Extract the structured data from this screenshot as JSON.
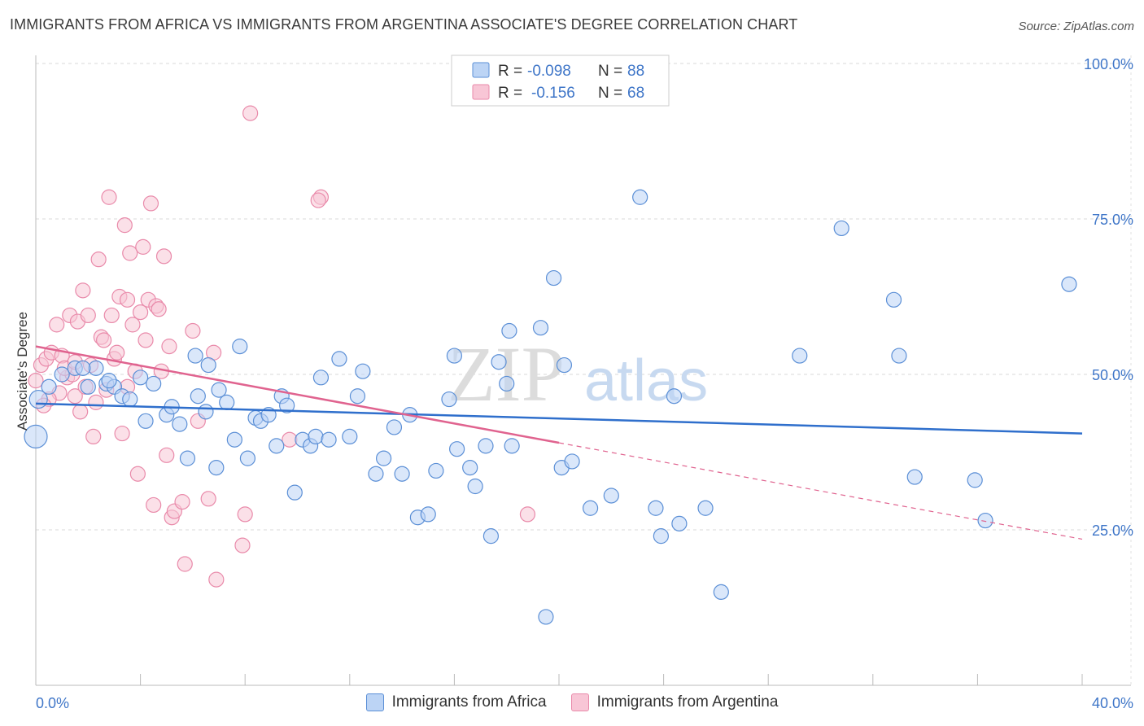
{
  "title": "IMMIGRANTS FROM AFRICA VS IMMIGRANTS FROM ARGENTINA ASSOCIATE'S DEGREE CORRELATION CHART",
  "source": "Source: ZipAtlas.com",
  "watermark": {
    "zip": "ZIP",
    "atlas": "atlas"
  },
  "legend": {
    "r_label": "R =",
    "n_label": "N =",
    "africa": {
      "r": "-0.098",
      "n": "88"
    },
    "argentina": {
      "r": "-0.156",
      "n": "68"
    }
  },
  "colors": {
    "africa_fill": "#bcd4f5",
    "africa_stroke": "#5b8fd6",
    "africa_line": "#2f6fcc",
    "argentina_fill": "#f8c6d6",
    "argentina_stroke": "#e98aaa",
    "argentina_line": "#e0638f",
    "grid": "#d9d9d9",
    "accent": "#3f76c8"
  },
  "chart_data": {
    "type": "scatter",
    "title": "IMMIGRANTS FROM AFRICA VS IMMIGRANTS FROM ARGENTINA ASSOCIATE'S DEGREE CORRELATION CHART",
    "xlabel": "",
    "ylabel": "Associate's Degree",
    "xlim": [
      0,
      40
    ],
    "ylim": [
      0,
      105
    ],
    "x_tick_labels": [
      {
        "value": 0,
        "label": "0.0%"
      },
      {
        "value": 40,
        "label": "40.0%"
      }
    ],
    "y_tick_labels": [
      {
        "value": 25,
        "label": "25.0%"
      },
      {
        "value": 50,
        "label": "50.0%"
      },
      {
        "value": 75,
        "label": "75.0%"
      },
      {
        "value": 100,
        "label": "100.0%"
      }
    ],
    "series": [
      {
        "name": "Immigrants from Africa",
        "r": -0.098,
        "n": 88,
        "trend": {
          "x": [
            0,
            40
          ],
          "y": [
            45.3,
            40.5
          ],
          "dashed_from": null
        },
        "points": [
          [
            0.0,
            40.0,
            14
          ],
          [
            0.1,
            46.0,
            11
          ],
          [
            0.5,
            48.0,
            9
          ],
          [
            1.0,
            50.0,
            9
          ],
          [
            1.5,
            51.0,
            9
          ],
          [
            2.0,
            48.0,
            9
          ],
          [
            2.3,
            51.0,
            9
          ],
          [
            2.7,
            48.5,
            9
          ],
          [
            3.0,
            48.0,
            9
          ],
          [
            3.3,
            46.5,
            9
          ],
          [
            3.6,
            46.0,
            9
          ],
          [
            4.0,
            49.5,
            9
          ],
          [
            4.2,
            42.5,
            9
          ],
          [
            4.5,
            48.5,
            9
          ],
          [
            5.0,
            43.5,
            9
          ],
          [
            5.2,
            44.8,
            9
          ],
          [
            5.5,
            42.0,
            9
          ],
          [
            5.8,
            36.5,
            9
          ],
          [
            6.1,
            53.0,
            9
          ],
          [
            6.2,
            46.5,
            9
          ],
          [
            6.6,
            51.5,
            9
          ],
          [
            6.9,
            35.0,
            9
          ],
          [
            7.0,
            47.5,
            9
          ],
          [
            7.3,
            45.5,
            9
          ],
          [
            7.6,
            39.5,
            9
          ],
          [
            7.8,
            54.5,
            9
          ],
          [
            8.1,
            36.5,
            9
          ],
          [
            8.4,
            43.0,
            9
          ],
          [
            8.6,
            42.5,
            9
          ],
          [
            8.9,
            43.5,
            9
          ],
          [
            9.2,
            38.5,
            9
          ],
          [
            9.4,
            46.5,
            9
          ],
          [
            9.6,
            45.0,
            9
          ],
          [
            9.9,
            31.0,
            9
          ],
          [
            10.2,
            39.5,
            9
          ],
          [
            10.5,
            38.5,
            9
          ],
          [
            10.7,
            40.0,
            9
          ],
          [
            10.9,
            49.5,
            9
          ],
          [
            11.2,
            39.5,
            9
          ],
          [
            11.6,
            52.5,
            9
          ],
          [
            12.0,
            40.0,
            9
          ],
          [
            12.3,
            46.5,
            9
          ],
          [
            12.5,
            50.5,
            9
          ],
          [
            13.0,
            34.0,
            9
          ],
          [
            13.3,
            36.5,
            9
          ],
          [
            13.7,
            41.5,
            9
          ],
          [
            14.0,
            34.0,
            9
          ],
          [
            14.3,
            43.5,
            9
          ],
          [
            14.6,
            27.0,
            9
          ],
          [
            15.0,
            27.5,
            9
          ],
          [
            15.3,
            34.5,
            9
          ],
          [
            15.8,
            46.0,
            9
          ],
          [
            16.0,
            53.0,
            9
          ],
          [
            16.1,
            38.0,
            9
          ],
          [
            16.6,
            35.0,
            9
          ],
          [
            16.8,
            32.0,
            9
          ],
          [
            17.2,
            38.5,
            9
          ],
          [
            17.4,
            24.0,
            9
          ],
          [
            17.7,
            52.0,
            9
          ],
          [
            18.0,
            48.5,
            9
          ],
          [
            18.1,
            57.0,
            9
          ],
          [
            18.2,
            38.5,
            9
          ],
          [
            19.3,
            57.5,
            9
          ],
          [
            19.5,
            11.0,
            9
          ],
          [
            19.8,
            65.5,
            9
          ],
          [
            20.1,
            35.0,
            9
          ],
          [
            20.2,
            51.5,
            9
          ],
          [
            20.5,
            36.0,
            9
          ],
          [
            21.2,
            28.5,
            9
          ],
          [
            22.0,
            30.5,
            9
          ],
          [
            23.7,
            28.5,
            9
          ],
          [
            23.1,
            78.5,
            9
          ],
          [
            23.9,
            24.0,
            9
          ],
          [
            24.6,
            26.0,
            9
          ],
          [
            24.4,
            46.5,
            9
          ],
          [
            25.6,
            28.5,
            9
          ],
          [
            26.2,
            15.0,
            9
          ],
          [
            29.2,
            53.0,
            9
          ],
          [
            30.8,
            73.5,
            9
          ],
          [
            32.8,
            62.0,
            9
          ],
          [
            33.0,
            53.0,
            9
          ],
          [
            33.6,
            33.5,
            9
          ],
          [
            35.9,
            33.0,
            9
          ],
          [
            36.3,
            26.5,
            9
          ],
          [
            39.5,
            64.5,
            9
          ],
          [
            1.8,
            51.0,
            9
          ],
          [
            2.8,
            49.0,
            9
          ],
          [
            6.5,
            44.0,
            9
          ]
        ]
      },
      {
        "name": "Immigrants from Argentina",
        "r": -0.156,
        "n": 68,
        "trend": {
          "x": [
            0,
            40
          ],
          "y": [
            54.5,
            23.5
          ],
          "dashed_from": 20
        },
        "points": [
          [
            0.0,
            49.0,
            9
          ],
          [
            0.2,
            51.5,
            9
          ],
          [
            0.4,
            52.5,
            9
          ],
          [
            0.6,
            53.5,
            9
          ],
          [
            0.8,
            58.0,
            9
          ],
          [
            0.9,
            47.0,
            9
          ],
          [
            1.0,
            53.0,
            9
          ],
          [
            1.2,
            49.5,
            9
          ],
          [
            1.3,
            59.5,
            9
          ],
          [
            1.4,
            50.0,
            9
          ],
          [
            1.5,
            46.5,
            9
          ],
          [
            1.6,
            58.5,
            9
          ],
          [
            1.7,
            44.0,
            9
          ],
          [
            1.8,
            63.5,
            9
          ],
          [
            1.9,
            48.0,
            9
          ],
          [
            2.0,
            59.5,
            9
          ],
          [
            2.1,
            51.5,
            9
          ],
          [
            2.2,
            40.0,
            9
          ],
          [
            2.3,
            45.5,
            9
          ],
          [
            2.4,
            68.5,
            9
          ],
          [
            2.5,
            56.0,
            9
          ],
          [
            2.6,
            55.5,
            9
          ],
          [
            2.8,
            78.5,
            9
          ],
          [
            2.9,
            59.5,
            9
          ],
          [
            3.0,
            52.5,
            9
          ],
          [
            3.1,
            53.5,
            9
          ],
          [
            3.2,
            62.5,
            9
          ],
          [
            3.3,
            40.5,
            9
          ],
          [
            3.4,
            74.0,
            9
          ],
          [
            3.5,
            62.0,
            9
          ],
          [
            3.6,
            69.5,
            9
          ],
          [
            3.7,
            58.0,
            9
          ],
          [
            3.8,
            50.5,
            9
          ],
          [
            3.9,
            34.0,
            9
          ],
          [
            4.0,
            60.0,
            9
          ],
          [
            4.1,
            70.5,
            9
          ],
          [
            4.2,
            55.5,
            9
          ],
          [
            4.3,
            62.0,
            9
          ],
          [
            4.4,
            77.5,
            9
          ],
          [
            4.5,
            29.0,
            9
          ],
          [
            4.6,
            61.0,
            9
          ],
          [
            4.7,
            60.5,
            9
          ],
          [
            4.8,
            50.5,
            9
          ],
          [
            4.9,
            69.0,
            9
          ],
          [
            5.0,
            37.0,
            9
          ],
          [
            5.1,
            54.5,
            9
          ],
          [
            5.2,
            27.0,
            9
          ],
          [
            5.3,
            28.0,
            9
          ],
          [
            5.6,
            29.5,
            9
          ],
          [
            5.7,
            19.5,
            9
          ],
          [
            6.0,
            57.0,
            9
          ],
          [
            6.2,
            42.5,
            9
          ],
          [
            6.6,
            30.0,
            9
          ],
          [
            6.9,
            17.0,
            9
          ],
          [
            6.8,
            53.5,
            9
          ],
          [
            8.0,
            27.5,
            9
          ],
          [
            7.9,
            22.5,
            9
          ],
          [
            8.2,
            92.0,
            9
          ],
          [
            9.7,
            39.5,
            9
          ],
          [
            10.9,
            78.5,
            9
          ],
          [
            10.8,
            78.0,
            9
          ],
          [
            18.8,
            27.5,
            9
          ],
          [
            0.5,
            46.0,
            9
          ],
          [
            1.1,
            51.0,
            9
          ],
          [
            2.7,
            47.5,
            9
          ],
          [
            3.5,
            48.0,
            9
          ],
          [
            0.3,
            45.0,
            9
          ],
          [
            1.5,
            52.0,
            9
          ]
        ]
      }
    ]
  },
  "bottom_legend": [
    "Immigrants from Africa",
    "Immigrants from Argentina"
  ]
}
